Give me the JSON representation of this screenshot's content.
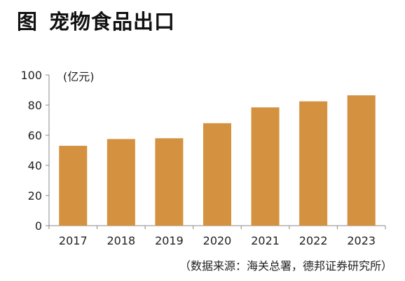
{
  "header": {
    "label": "图",
    "title": "宠物食品出口"
  },
  "source": "（数据来源：海关总署，德邦证券研究所）",
  "chart_data": {
    "type": "bar",
    "title": "宠物食品出口",
    "xlabel": "",
    "ylabel": "",
    "unit_label": "(亿元)",
    "categories": [
      "2017",
      "2018",
      "2019",
      "2020",
      "2021",
      "2022",
      "2023"
    ],
    "series": [
      {
        "values": [
          53,
          57.5,
          58,
          68,
          78.5,
          82.5,
          86.5
        ]
      }
    ],
    "ylim": [
      0,
      100
    ],
    "yticks": [
      0,
      20,
      40,
      60,
      80,
      100
    ],
    "yticklabels": [
      "0",
      "20",
      "40",
      "60",
      "80",
      "100"
    ],
    "grid": false,
    "bar_color": "#D4913F"
  }
}
